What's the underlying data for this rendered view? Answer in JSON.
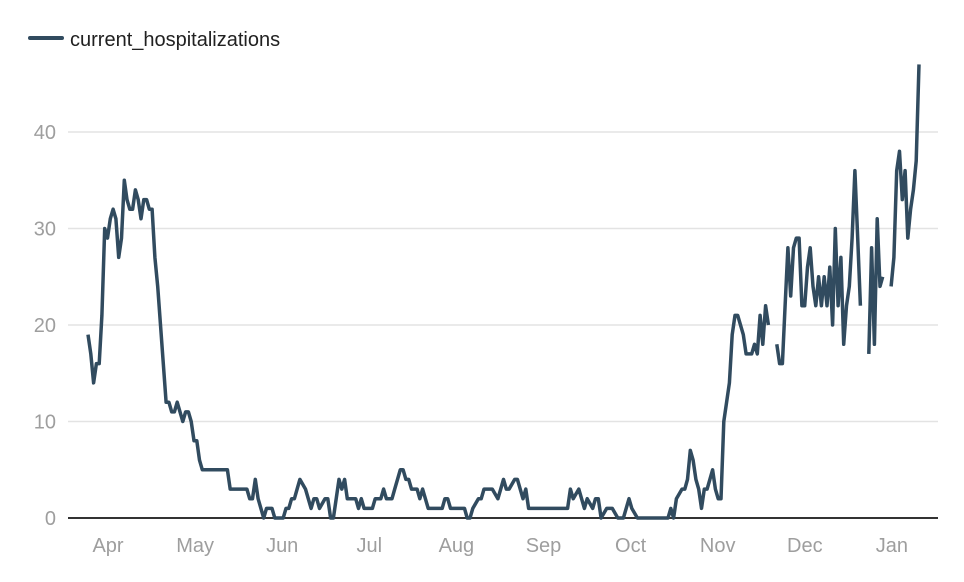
{
  "chart_data": {
    "type": "line",
    "title": "",
    "xlabel": "",
    "ylabel": "",
    "ylim": [
      0,
      47
    ],
    "grid": true,
    "legend_position": "top-left",
    "line_color": "#314b5f",
    "x_unit": "days since late March",
    "y_ticks": [
      0,
      10,
      20,
      30,
      40
    ],
    "x_tick_labels": [
      "Apr",
      "May",
      "Jun",
      "Jul",
      "Aug",
      "Sep",
      "Oct",
      "Nov",
      "Dec",
      "Jan"
    ],
    "series": [
      {
        "name": "current_hospitalizations",
        "daily_start_values": [
          19,
          17,
          14,
          16,
          16,
          21,
          30,
          29,
          31,
          32,
          31,
          27,
          29,
          35,
          33,
          32,
          32,
          34,
          33,
          31,
          33,
          33,
          32,
          32,
          27,
          24,
          20,
          16,
          12,
          12,
          11,
          11,
          12,
          11,
          10,
          11,
          11,
          10,
          8,
          8,
          6,
          5,
          5,
          5,
          5,
          5,
          5,
          5,
          5,
          5,
          5,
          3,
          3,
          3,
          3,
          3,
          3,
          3,
          2,
          2,
          4,
          2,
          1,
          0,
          1,
          1,
          1,
          0,
          0,
          0,
          0,
          1,
          1,
          2,
          2,
          3
        ],
        "points": [
          [
            76,
            4
          ],
          [
            78,
            3
          ],
          [
            80,
            1
          ],
          [
            81,
            2
          ],
          [
            82,
            2
          ],
          [
            83,
            1
          ],
          [
            85,
            2
          ],
          [
            86,
            2
          ],
          [
            87,
            0
          ],
          [
            88,
            0
          ],
          [
            90,
            4
          ],
          [
            91,
            3
          ],
          [
            92,
            4
          ],
          [
            93,
            2
          ],
          [
            96,
            2
          ],
          [
            97,
            1
          ],
          [
            98,
            2
          ],
          [
            99,
            1
          ],
          [
            102,
            1
          ],
          [
            103,
            2
          ],
          [
            105,
            2
          ],
          [
            106,
            3
          ],
          [
            107,
            2
          ],
          [
            109,
            2
          ],
          [
            110,
            3
          ],
          [
            112,
            5
          ],
          [
            113,
            5
          ],
          [
            114,
            4
          ],
          [
            115,
            4
          ],
          [
            116,
            3
          ],
          [
            118,
            3
          ],
          [
            119,
            2
          ],
          [
            120,
            3
          ],
          [
            122,
            1
          ],
          [
            127,
            1
          ],
          [
            128,
            2
          ],
          [
            129,
            2
          ],
          [
            130,
            1
          ],
          [
            135,
            1
          ],
          [
            136,
            0
          ],
          [
            137,
            0
          ],
          [
            138,
            1
          ],
          [
            140,
            2
          ],
          [
            141,
            2
          ],
          [
            142,
            3
          ],
          [
            145,
            3
          ],
          [
            147,
            2
          ],
          [
            148,
            3
          ],
          [
            149,
            4
          ],
          [
            150,
            3
          ],
          [
            151,
            3
          ],
          [
            153,
            4
          ],
          [
            154,
            4
          ],
          [
            156,
            2
          ],
          [
            157,
            3
          ],
          [
            158,
            1
          ],
          [
            172,
            1
          ],
          [
            173,
            3
          ],
          [
            174,
            2
          ],
          [
            176,
            3
          ],
          [
            177,
            2
          ],
          [
            178,
            1
          ],
          [
            179,
            2
          ],
          [
            181,
            1
          ],
          [
            182,
            2
          ],
          [
            183,
            2
          ],
          [
            184,
            0
          ],
          [
            186,
            1
          ],
          [
            188,
            1
          ],
          [
            190,
            0
          ],
          [
            192,
            0
          ],
          [
            194,
            2
          ],
          [
            195,
            1
          ],
          [
            197,
            0
          ],
          [
            208,
            0
          ],
          [
            209,
            1
          ],
          [
            210,
            0
          ],
          [
            211,
            2
          ],
          [
            213,
            3
          ],
          [
            214,
            3
          ],
          [
            215,
            4
          ],
          [
            216,
            7
          ],
          [
            217,
            6
          ],
          [
            218,
            4
          ],
          [
            219,
            3
          ],
          [
            220,
            1
          ],
          [
            221,
            3
          ],
          [
            222,
            3
          ],
          [
            223,
            4
          ],
          [
            224,
            5
          ],
          [
            225,
            3
          ],
          [
            226,
            2
          ],
          [
            227,
            2
          ],
          [
            228,
            10
          ],
          [
            229,
            12
          ],
          [
            230,
            14
          ],
          [
            231,
            19
          ],
          [
            232,
            21
          ],
          [
            233,
            21
          ],
          [
            234,
            20
          ],
          [
            235,
            19
          ],
          [
            236,
            17
          ],
          [
            237,
            17
          ],
          [
            238,
            17
          ],
          [
            239,
            18
          ],
          [
            240,
            17
          ],
          [
            241,
            21
          ],
          [
            242,
            18
          ],
          [
            243,
            22
          ],
          [
            244,
            20
          ],
          [
            245,
            null
          ],
          [
            247,
            18
          ],
          [
            248,
            16
          ],
          [
            249,
            16
          ],
          [
            250,
            22
          ],
          [
            251,
            28
          ],
          [
            252,
            23
          ],
          [
            253,
            28
          ],
          [
            254,
            29
          ],
          [
            255,
            29
          ],
          [
            256,
            22
          ],
          [
            257,
            22
          ],
          [
            258,
            26
          ],
          [
            259,
            28
          ],
          [
            260,
            24
          ],
          [
            261,
            22
          ],
          [
            262,
            25
          ],
          [
            263,
            22
          ],
          [
            264,
            25
          ],
          [
            265,
            22
          ],
          [
            266,
            26
          ],
          [
            267,
            20
          ],
          [
            268,
            30
          ],
          [
            269,
            22
          ],
          [
            270,
            27
          ],
          [
            271,
            18
          ],
          [
            272,
            22
          ],
          [
            273,
            24
          ],
          [
            274,
            29
          ],
          [
            275,
            36
          ],
          [
            276,
            29
          ],
          [
            277,
            22
          ],
          [
            278,
            null
          ],
          [
            280,
            17
          ],
          [
            281,
            28
          ],
          [
            282,
            18
          ],
          [
            283,
            31
          ],
          [
            284,
            24
          ],
          [
            285,
            25
          ],
          [
            286,
            null
          ],
          [
            288,
            24
          ],
          [
            289,
            27
          ],
          [
            290,
            36
          ],
          [
            291,
            38
          ],
          [
            292,
            33
          ],
          [
            293,
            36
          ],
          [
            294,
            29
          ],
          [
            295,
            32
          ],
          [
            296,
            34
          ],
          [
            297,
            37
          ],
          [
            298,
            47
          ]
        ]
      }
    ]
  }
}
